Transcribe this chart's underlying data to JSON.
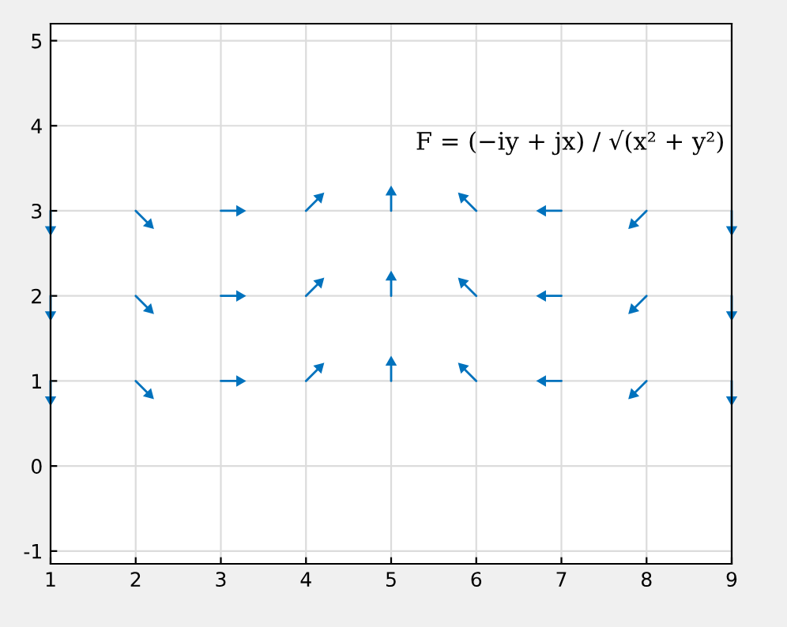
{
  "chart_data": {
    "type": "line",
    "xlim": [
      1,
      9
    ],
    "ylim": [
      -1.15,
      5.2
    ],
    "xticks": [
      1,
      2,
      3,
      4,
      5,
      6,
      7,
      8,
      9
    ],
    "yticks": [
      -1,
      0,
      1,
      2,
      3,
      4,
      5
    ],
    "grid": true,
    "marker": "triangle",
    "line_style": "solid",
    "annotations": [
      "F = (−iy + jx) / √(x² + y²)"
    ],
    "series": [
      {
        "color": "#0072bd",
        "x": [
          1,
          1
        ],
        "values": [
          1,
          0.78
        ]
      },
      {
        "color": "#0072bd",
        "x": [
          2,
          2.16
        ],
        "values": [
          1,
          0.84
        ]
      },
      {
        "color": "#0072bd",
        "x": [
          3,
          3.22
        ],
        "values": [
          1,
          1
        ]
      },
      {
        "color": "#0072bd",
        "x": [
          4,
          4.16
        ],
        "values": [
          1,
          1.16
        ]
      },
      {
        "color": "#0072bd",
        "x": [
          5,
          5
        ],
        "values": [
          1,
          1.22
        ]
      },
      {
        "color": "#0072bd",
        "x": [
          6,
          5.84
        ],
        "values": [
          1,
          1.16
        ]
      },
      {
        "color": "#0072bd",
        "x": [
          7,
          6.78
        ],
        "values": [
          1,
          1
        ]
      },
      {
        "color": "#0072bd",
        "x": [
          8,
          7.84
        ],
        "values": [
          1,
          0.84
        ]
      },
      {
        "color": "#0072bd",
        "x": [
          9,
          9
        ],
        "values": [
          1,
          0.78
        ]
      },
      {
        "color": "#0072bd",
        "x": [
          1,
          1
        ],
        "values": [
          2,
          1.78
        ]
      },
      {
        "color": "#0072bd",
        "x": [
          2,
          2.16
        ],
        "values": [
          2,
          1.84
        ]
      },
      {
        "color": "#0072bd",
        "x": [
          3,
          3.22
        ],
        "values": [
          2,
          2
        ]
      },
      {
        "color": "#0072bd",
        "x": [
          4,
          4.16
        ],
        "values": [
          2,
          2.16
        ]
      },
      {
        "color": "#0072bd",
        "x": [
          5,
          5
        ],
        "values": [
          2,
          2.22
        ]
      },
      {
        "color": "#0072bd",
        "x": [
          6,
          5.84
        ],
        "values": [
          2,
          2.16
        ]
      },
      {
        "color": "#0072bd",
        "x": [
          7,
          6.78
        ],
        "values": [
          2,
          2
        ]
      },
      {
        "color": "#0072bd",
        "x": [
          8,
          7.84
        ],
        "values": [
          2,
          1.84
        ]
      },
      {
        "color": "#0072bd",
        "x": [
          9,
          9
        ],
        "values": [
          2,
          1.78
        ]
      },
      {
        "color": "#0072bd",
        "x": [
          1,
          1
        ],
        "values": [
          3,
          2.78
        ]
      },
      {
        "color": "#0072bd",
        "x": [
          2,
          2.16
        ],
        "values": [
          3,
          2.84
        ]
      },
      {
        "color": "#0072bd",
        "x": [
          3,
          3.22
        ],
        "values": [
          3,
          3
        ]
      },
      {
        "color": "#0072bd",
        "x": [
          4,
          4.16
        ],
        "values": [
          3,
          3.16
        ]
      },
      {
        "color": "#0072bd",
        "x": [
          5,
          5
        ],
        "values": [
          3,
          3.22
        ]
      },
      {
        "color": "#0072bd",
        "x": [
          6,
          5.84
        ],
        "values": [
          3,
          3.16
        ]
      },
      {
        "color": "#0072bd",
        "x": [
          7,
          6.78
        ],
        "values": [
          3,
          3
        ]
      },
      {
        "color": "#0072bd",
        "x": [
          8,
          7.84
        ],
        "values": [
          3,
          2.84
        ]
      },
      {
        "color": "#0072bd",
        "x": [
          9,
          9
        ],
        "values": [
          3,
          2.78
        ]
      }
    ]
  }
}
